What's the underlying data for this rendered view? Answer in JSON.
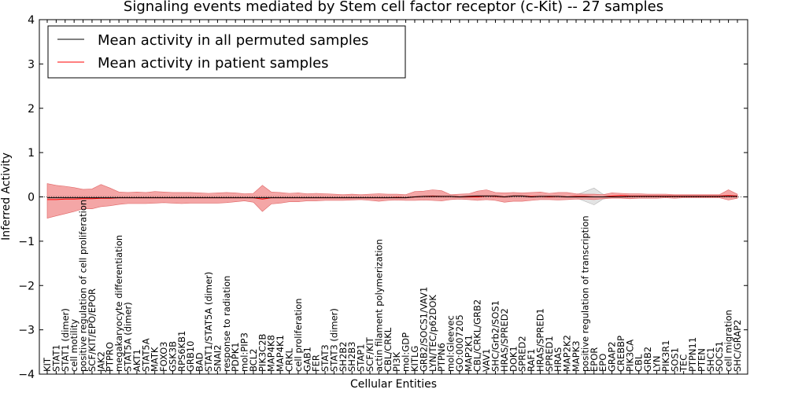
{
  "chart_data": {
    "type": "line",
    "title": "Signaling events mediated by Stem cell factor receptor (c-Kit) -- 27 samples",
    "xlabel": "Cellular Entities",
    "ylabel": "Inferred Activity",
    "ylim": [
      -4,
      4
    ],
    "yticks": [
      -4,
      -3,
      -2,
      -1,
      0,
      1,
      2,
      3,
      4
    ],
    "ytick_labels": [
      "−4",
      "−3",
      "−2",
      "−1",
      "0",
      "1",
      "2",
      "3",
      "4"
    ],
    "legend_position": "top-left",
    "categories": [
      "KIT",
      "STAT1",
      "STAT1 (dimer)",
      "cell motility",
      "positive regulation of cell proliferation",
      "SCF/KIT/EPO/EPOR",
      "JAK2",
      "PTPRO",
      "megakaryocyte differentiation",
      "STAT5A (dimer)",
      "AKT1",
      "STAT5A",
      "MATK",
      "FOXO3",
      "GSK3B",
      "RPS6KB1",
      "GRB10",
      "BAD",
      "STAT1/STAT5A (dimer)",
      "SNAI2",
      "response to radiation",
      "PDPK1",
      "mol:PIP3",
      "BCL2",
      "PIK3C2B",
      "MAP4K8",
      "MAP4K1",
      "CRKL",
      "cell proliferation",
      "GAB1",
      "FER",
      "STAT3",
      "STAT3 (dimer)",
      "SH2B2",
      "SH2B3",
      "STAP1",
      "SCF/KIT",
      "actin filament polymerization",
      "CBL/CRKL",
      "PI3K",
      "mol:GDP",
      "KITLG",
      "GRB2/SOCS1/VAV1",
      "LYN/TEC/p62DOK",
      "PTPN6",
      "mol:Gleevec",
      "GO:0007205",
      "MAP2K1",
      "CBL/CRKL/GRB2",
      "VAV1",
      "SHC/Grb2/SOS1",
      "HRAS/SPRED2",
      "DOK1",
      "SPRED2",
      "RAF1",
      "HRAS/SPRED1",
      "SPRED1",
      "HRAS",
      "MAP2K2",
      "MAPK3",
      "positive regulation of transcription",
      "EPOR",
      "EPO",
      "GRAP2",
      "CREBBP",
      "PIK3CA",
      "CBL",
      "GRB2",
      "LYN",
      "PIK3R1",
      "SOS1",
      "TEC",
      "PTPN11",
      "PTEN",
      "SHC1",
      "SOCS1",
      "cell migration",
      "SHC/GRAP2"
    ],
    "series": [
      {
        "name": "Mean activity in all permuted samples",
        "color": "#000000",
        "values": [
          -0.02,
          -0.02,
          -0.02,
          -0.02,
          -0.02,
          -0.02,
          -0.02,
          -0.02,
          -0.02,
          -0.02,
          -0.02,
          -0.02,
          -0.02,
          -0.02,
          -0.02,
          -0.02,
          -0.02,
          -0.02,
          -0.02,
          -0.02,
          -0.02,
          -0.02,
          -0.02,
          -0.02,
          -0.02,
          -0.02,
          -0.02,
          -0.02,
          -0.02,
          -0.02,
          -0.02,
          -0.02,
          -0.02,
          -0.02,
          -0.02,
          -0.02,
          -0.02,
          -0.02,
          -0.02,
          -0.02,
          -0.02,
          0.0,
          0.01,
          0.01,
          0.01,
          0.01,
          0.0,
          0.01,
          0.02,
          0.02,
          0.02,
          0.0,
          0.02,
          0.02,
          0.0,
          0.01,
          0.01,
          0.01,
          0.0,
          0.0,
          0.0,
          0.0,
          0.0,
          0.0,
          0.0,
          0.01,
          0.01,
          0.01,
          0.01,
          0.01,
          0.01,
          0.01,
          0.01,
          0.01,
          0.01,
          0.01,
          0.01,
          0.01
        ],
        "band_low": [
          -0.02,
          -0.02,
          -0.02,
          -0.02,
          -0.02,
          -0.02,
          -0.02,
          -0.02,
          -0.02,
          -0.02,
          -0.02,
          -0.02,
          -0.02,
          -0.02,
          -0.02,
          -0.02,
          -0.02,
          -0.02,
          -0.02,
          -0.02,
          -0.02,
          -0.02,
          -0.02,
          -0.02,
          -0.02,
          -0.02,
          -0.02,
          -0.02,
          -0.02,
          -0.02,
          -0.02,
          -0.02,
          -0.02,
          -0.02,
          -0.02,
          -0.02,
          -0.02,
          -0.02,
          -0.02,
          -0.02,
          -0.02,
          -0.02,
          -0.02,
          -0.02,
          -0.02,
          -0.02,
          -0.02,
          -0.02,
          -0.02,
          -0.02,
          -0.02,
          -0.02,
          -0.02,
          -0.02,
          -0.02,
          -0.02,
          -0.02,
          -0.02,
          -0.02,
          -0.02,
          -0.1,
          -0.18,
          -0.05,
          -0.02,
          -0.02,
          -0.02,
          -0.02,
          -0.02,
          -0.02,
          -0.02,
          -0.02,
          -0.02,
          -0.02,
          -0.02,
          -0.02,
          -0.02,
          -0.02,
          -0.02
        ],
        "band_high": [
          0.02,
          0.02,
          0.02,
          0.02,
          0.02,
          0.02,
          0.02,
          0.02,
          0.02,
          0.02,
          0.02,
          0.02,
          0.02,
          0.02,
          0.02,
          0.02,
          0.02,
          0.02,
          0.02,
          0.02,
          0.02,
          0.02,
          0.02,
          0.02,
          0.02,
          0.02,
          0.02,
          0.02,
          0.02,
          0.02,
          0.02,
          0.02,
          0.02,
          0.02,
          0.02,
          0.02,
          0.02,
          0.02,
          0.02,
          0.02,
          0.02,
          0.02,
          0.03,
          0.03,
          0.03,
          0.03,
          0.02,
          0.03,
          0.04,
          0.04,
          0.04,
          0.02,
          0.04,
          0.04,
          0.02,
          0.03,
          0.03,
          0.03,
          0.02,
          0.04,
          0.12,
          0.2,
          0.06,
          0.02,
          0.02,
          0.02,
          0.02,
          0.02,
          0.02,
          0.02,
          0.02,
          0.02,
          0.02,
          0.02,
          0.02,
          0.02,
          0.02,
          0.02
        ]
      },
      {
        "name": "Mean activity in patient samples",
        "color": "#ff0000",
        "values": [
          -0.06,
          -0.06,
          -0.05,
          -0.05,
          -0.04,
          -0.04,
          -0.03,
          -0.03,
          -0.02,
          -0.02,
          -0.02,
          -0.02,
          -0.02,
          -0.02,
          -0.02,
          -0.02,
          -0.02,
          -0.02,
          -0.02,
          -0.02,
          -0.02,
          -0.02,
          -0.02,
          -0.02,
          -0.05,
          -0.02,
          -0.02,
          -0.02,
          -0.02,
          -0.02,
          -0.02,
          -0.02,
          -0.02,
          -0.02,
          -0.02,
          -0.02,
          -0.02,
          -0.02,
          -0.02,
          -0.01,
          -0.02,
          0.0,
          0.01,
          0.02,
          0.01,
          0.01,
          0.0,
          0.0,
          0.0,
          0.02,
          0.01,
          0.0,
          0.02,
          0.02,
          0.01,
          0.01,
          0.0,
          0.01,
          0.0,
          0.01,
          0.01,
          0.0,
          0.0,
          0.02,
          0.03,
          0.02,
          0.02,
          0.02,
          0.02,
          0.02,
          0.02,
          0.02,
          0.02,
          0.02,
          0.02,
          0.02,
          0.03,
          0.02
        ],
        "band_low": [
          -0.48,
          -0.43,
          -0.38,
          -0.33,
          -0.27,
          -0.27,
          -0.22,
          -0.2,
          -0.17,
          -0.15,
          -0.15,
          -0.15,
          -0.14,
          -0.13,
          -0.14,
          -0.15,
          -0.14,
          -0.14,
          -0.14,
          -0.14,
          -0.13,
          -0.11,
          -0.09,
          -0.12,
          -0.33,
          -0.16,
          -0.14,
          -0.11,
          -0.11,
          -0.09,
          -0.09,
          -0.08,
          -0.08,
          -0.08,
          -0.07,
          -0.06,
          -0.08,
          -0.1,
          -0.08,
          -0.07,
          -0.08,
          -0.08,
          -0.07,
          -0.08,
          -0.09,
          -0.06,
          -0.05,
          -0.06,
          -0.08,
          -0.06,
          -0.08,
          -0.12,
          -0.1,
          -0.1,
          -0.08,
          -0.06,
          -0.06,
          -0.07,
          -0.06,
          -0.05,
          -0.05,
          -0.06,
          -0.04,
          -0.03,
          -0.03,
          -0.04,
          -0.03,
          -0.03,
          -0.03,
          -0.02,
          -0.03,
          -0.02,
          -0.02,
          -0.02,
          -0.02,
          -0.02,
          -0.07,
          -0.03
        ],
        "band_high": [
          0.3,
          0.26,
          0.24,
          0.21,
          0.17,
          0.18,
          0.28,
          0.2,
          0.11,
          0.1,
          0.11,
          0.1,
          0.12,
          0.11,
          0.1,
          0.1,
          0.1,
          0.09,
          0.08,
          0.09,
          0.1,
          0.09,
          0.07,
          0.08,
          0.26,
          0.11,
          0.1,
          0.08,
          0.09,
          0.07,
          0.08,
          0.07,
          0.06,
          0.05,
          0.06,
          0.05,
          0.06,
          0.07,
          0.06,
          0.06,
          0.05,
          0.12,
          0.13,
          0.16,
          0.14,
          0.05,
          0.06,
          0.07,
          0.13,
          0.16,
          0.1,
          0.09,
          0.1,
          0.09,
          0.1,
          0.11,
          0.08,
          0.1,
          0.1,
          0.07,
          0.06,
          0.06,
          0.05,
          0.09,
          0.08,
          0.07,
          0.07,
          0.06,
          0.06,
          0.06,
          0.05,
          0.05,
          0.05,
          0.05,
          0.05,
          0.05,
          0.16,
          0.06
        ]
      }
    ],
    "zero_line_style": "dotted"
  }
}
